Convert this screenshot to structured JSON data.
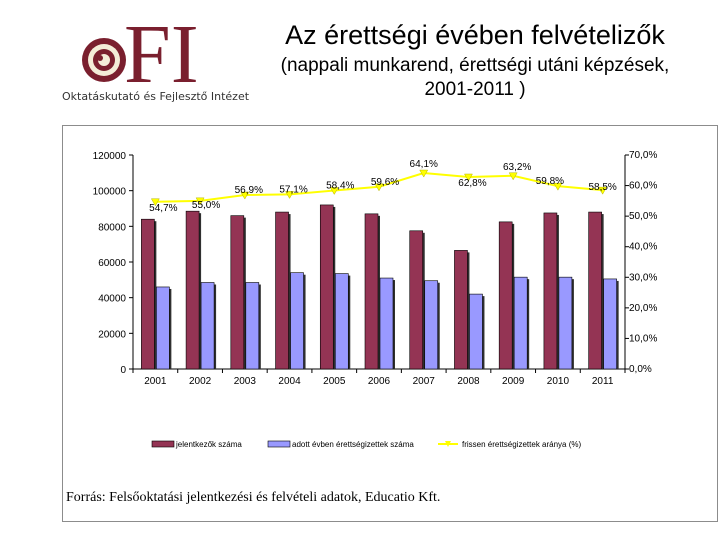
{
  "logo": {
    "letters": "FI",
    "subtitle": "Oktatáskutató és Fejlesztő Intézet"
  },
  "header": {
    "title": "Az érettségi évében felvételizők",
    "subtitle_line1": "(nappali munkarend, érettségi utáni képzések,",
    "subtitle_line2": "2001-2011 )"
  },
  "source": "Forrás: Felsőoktatási jelentkezési és felvételi adatok, Educatio Kft.",
  "colors": {
    "bar1": "#943454",
    "bar2": "#9999ff",
    "line": "#ffff00",
    "marker": "#ffff00"
  },
  "chart_data": {
    "type": "bar",
    "categories": [
      "2001",
      "2002",
      "2003",
      "2004",
      "2005",
      "2006",
      "2007",
      "2008",
      "2009",
      "2010",
      "2011"
    ],
    "series": [
      {
        "name": "jelentkezők száma",
        "type": "bar",
        "axis": "left",
        "values": [
          84000,
          88500,
          86000,
          88000,
          92000,
          87000,
          77500,
          66500,
          82500,
          87500,
          88000
        ]
      },
      {
        "name": "adott évben érettségizettek száma",
        "type": "bar",
        "axis": "left",
        "values": [
          46000,
          48500,
          48500,
          54000,
          53500,
          51000,
          49500,
          42000,
          51500,
          51500,
          50500
        ]
      },
      {
        "name": "frissen érettségizettek aránya (%)",
        "type": "line",
        "axis": "right",
        "values": [
          54.7,
          55.0,
          56.9,
          57.1,
          58.4,
          59.6,
          64.1,
          62.8,
          63.2,
          59.8,
          58.5
        ],
        "labels": [
          "54,7%",
          "55,0%",
          "56,9%",
          "57,1%",
          "58,4%",
          "59,6%",
          "64,1%",
          "62,8%",
          "63,2%",
          "59,8%",
          "58,5%"
        ]
      }
    ],
    "ylim_left": [
      0,
      120000
    ],
    "yticks_left": [
      "0",
      "20000",
      "40000",
      "60000",
      "80000",
      "100000",
      "120000"
    ],
    "ylim_right": [
      0,
      70
    ],
    "yticks_right": [
      "0,0%",
      "10,0%",
      "20,0%",
      "30,0%",
      "40,0%",
      "50,0%",
      "60,0%",
      "70,0%"
    ],
    "grid": false,
    "legend_position": "bottom"
  }
}
